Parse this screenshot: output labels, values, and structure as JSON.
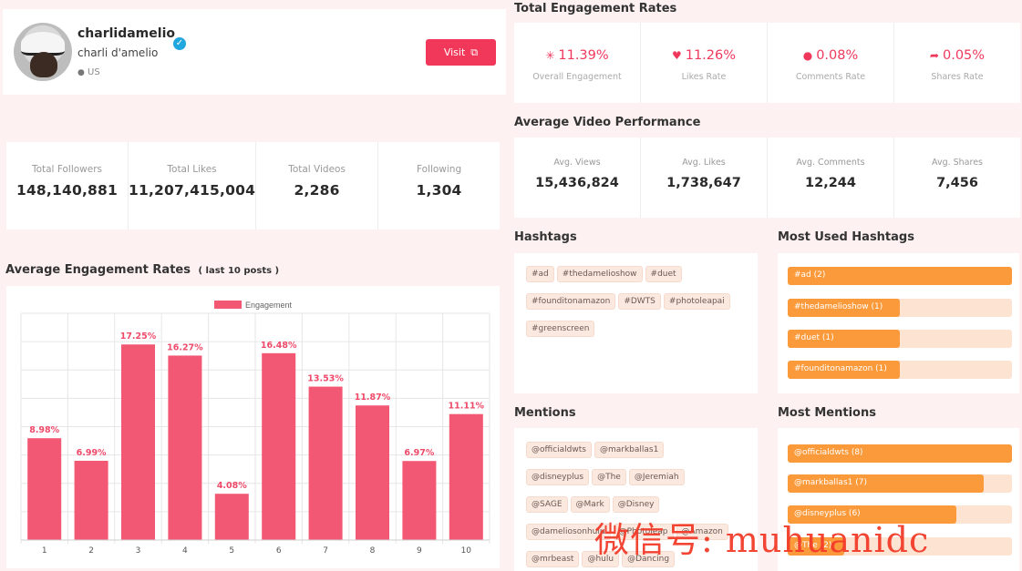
{
  "profile": {
    "username": "charlidamelio",
    "display_name": "charli d'amelio",
    "location": "US",
    "visit_label": "Visit"
  },
  "stats": [
    {
      "label": "Total Followers",
      "value": "148,140,881"
    },
    {
      "label": "Total Likes",
      "value": "11,207,415,004"
    },
    {
      "label": "Total Videos",
      "value": "2,286"
    },
    {
      "label": "Following",
      "value": "1,304"
    }
  ],
  "engagement_chart": {
    "title": "Average Engagement Rates",
    "subtitle": "( last 10 posts )"
  },
  "chart_data": {
    "type": "bar",
    "categories": [
      "1",
      "2",
      "3",
      "4",
      "5",
      "6",
      "7",
      "8",
      "9",
      "10"
    ],
    "series": [
      {
        "name": "Engagement",
        "values": [
          8.98,
          6.99,
          17.25,
          16.27,
          4.08,
          16.48,
          13.53,
          11.87,
          6.97,
          11.11
        ]
      }
    ],
    "data_labels": [
      "8.98%",
      "6.99%",
      "17.25%",
      "16.27%",
      "4.08%",
      "16.48%",
      "13.53%",
      "11.87%",
      "6.97%",
      "11.11%"
    ],
    "ylim": [
      0,
      20
    ],
    "grid": true,
    "legend": "top-center",
    "bar_color": "#f25874"
  },
  "rates": {
    "title": "Total Engagement Rates",
    "items": [
      {
        "icon": "sparkle-icon",
        "glyph": "✳",
        "value": "11.39%",
        "label": "Overall Engagement"
      },
      {
        "icon": "heart-icon",
        "glyph": "♥",
        "value": "11.26%",
        "label": "Likes Rate"
      },
      {
        "icon": "comment-icon",
        "glyph": "●",
        "value": "0.08%",
        "label": "Comments Rate"
      },
      {
        "icon": "share-icon",
        "glyph": "➦",
        "value": "0.05%",
        "label": "Shares Rate"
      }
    ]
  },
  "average": {
    "title": "Average Video Performance",
    "items": [
      {
        "label": "Avg. Views",
        "value": "15,436,824"
      },
      {
        "label": "Avg. Likes",
        "value": "1,738,647"
      },
      {
        "label": "Avg. Comments",
        "value": "12,244"
      },
      {
        "label": "Avg. Shares",
        "value": "7,456"
      }
    ]
  },
  "hashtags": {
    "title": "Hashtags",
    "items": [
      "#ad",
      "#thedameIioshow",
      "#duet",
      "#founditonamazon",
      "#DWTS",
      "#photoleapai",
      "#greenscreen"
    ]
  },
  "most_hashtags": {
    "title": "Most Used Hashtags",
    "items": [
      {
        "label": "#ad (2)",
        "fraction": 1.0
      },
      {
        "label": "#thedamelioshow (1)",
        "fraction": 0.5
      },
      {
        "label": "#duet (1)",
        "fraction": 0.5
      },
      {
        "label": "#founditonamazon (1)",
        "fraction": 0.5
      }
    ]
  },
  "mentions": {
    "title": "Mentions",
    "items": [
      "@officialdwts",
      "@markballas1",
      "@disneyplus",
      "@The",
      "@Jeremiah",
      "@SAGE",
      "@Mark",
      "@Disney",
      "@dameliosonhulu",
      "@Photoleap",
      "@Amazon",
      "@mrbeast",
      "@hulu",
      "@Dancing"
    ]
  },
  "most_mentions": {
    "title": "Most Mentions",
    "items": [
      {
        "label": "@officialdwts (8)",
        "fraction": 1.0
      },
      {
        "label": "@markballas1 (7)",
        "fraction": 0.875
      },
      {
        "label": "@disneyplus (6)",
        "fraction": 0.75
      },
      {
        "label": "@The (2)",
        "fraction": 0.25
      }
    ]
  },
  "watermark": "微信号: muhuanidc",
  "colors": {
    "accent": "#f2385a",
    "bar": "#f25874",
    "orange": "#fb9a3a",
    "orange_track": "#fde3d2",
    "verified": "#20a7e0"
  }
}
